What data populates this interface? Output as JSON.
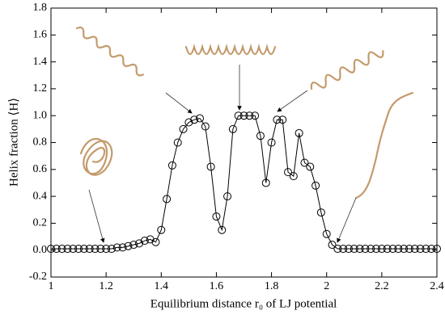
{
  "chart_data": {
    "type": "line",
    "xlabel": "Equilibrium distance r₀ of LJ potential",
    "ylabel": "Helix fraction ⟨H⟩",
    "x": [
      1,
      1.02,
      1.04,
      1.06,
      1.08,
      1.1,
      1.12,
      1.14,
      1.16,
      1.18,
      1.2,
      1.22,
      1.24,
      1.26,
      1.28,
      1.3,
      1.32,
      1.34,
      1.36,
      1.38,
      1.4,
      1.42,
      1.44,
      1.46,
      1.48,
      1.5,
      1.52,
      1.54,
      1.56,
      1.58,
      1.6,
      1.62,
      1.64,
      1.66,
      1.68,
      1.7,
      1.72,
      1.74,
      1.76,
      1.78,
      1.8,
      1.82,
      1.84,
      1.86,
      1.88,
      1.9,
      1.92,
      1.94,
      1.96,
      1.98,
      2,
      2.02,
      2.04,
      2.06,
      2.08,
      2.1,
      2.12,
      2.14,
      2.16,
      2.18,
      2.2,
      2.22,
      2.24,
      2.26,
      2.28,
      2.3,
      2.32,
      2.34,
      2.36,
      2.38,
      2.4
    ],
    "values": [
      0.01,
      0.01,
      0.01,
      0.01,
      0.01,
      0.01,
      0.01,
      0.01,
      0.01,
      0.01,
      0.01,
      0.01,
      0.02,
      0.02,
      0.03,
      0.04,
      0.05,
      0.07,
      0.08,
      0.06,
      0.15,
      0.38,
      0.63,
      0.8,
      0.9,
      0.95,
      0.97,
      0.98,
      0.92,
      0.62,
      0.25,
      0.15,
      0.4,
      0.9,
      1.0,
      1.0,
      1.0,
      1.0,
      0.85,
      0.5,
      0.8,
      0.97,
      0.97,
      0.58,
      0.55,
      0.87,
      0.65,
      0.62,
      0.48,
      0.28,
      0.12,
      0.04,
      0.01,
      0.01,
      0.01,
      0.01,
      0.01,
      0.01,
      0.01,
      0.01,
      0.01,
      0.01,
      0.01,
      0.01,
      0.01,
      0.01,
      0.01,
      0.01,
      0.01,
      0.01,
      0.01
    ],
    "color": "#000000",
    "xlim": [
      1,
      2.4
    ],
    "xticks": [
      1,
      1.2,
      1.4,
      1.6,
      1.8,
      2,
      2.2,
      2.4
    ],
    "ylim": [
      -0.2,
      1.8
    ],
    "yticks": [
      -0.2,
      {
        "value": 0,
        "label": "0.0"
      },
      0.2,
      0.4,
      0.6,
      0.8,
      {
        "value": 1,
        "label": "1.0"
      },
      1.2,
      1.4,
      1.6,
      1.8
    ]
  }
}
